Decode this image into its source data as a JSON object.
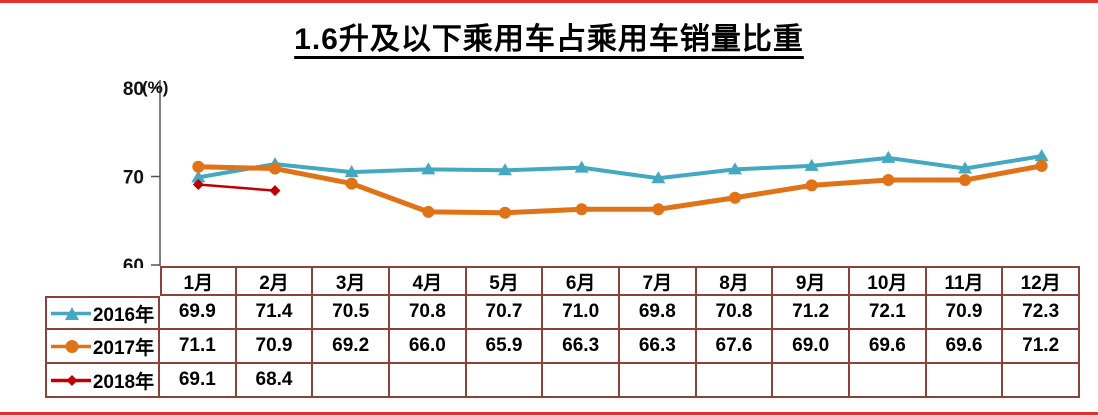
{
  "page": {
    "title": "1.6升及以下乘用车占乘用车销量比重"
  },
  "colors": {
    "series_2016": "#44a8c0",
    "series_2017": "#e07217",
    "series_2018": "#c00000",
    "table_border": "#8a423c",
    "frame_line": "#e03228"
  },
  "chart_data": {
    "type": "line",
    "title": "1.6升及以下乘用车占乘用车销量比重",
    "unit_label": "(%)",
    "ylim": [
      60,
      80
    ],
    "y_ticks": [
      80,
      70,
      60
    ],
    "grid": false,
    "legend_position": "table-left",
    "categories": [
      "1月",
      "2月",
      "3月",
      "4月",
      "5月",
      "6月",
      "7月",
      "8月",
      "9月",
      "10月",
      "11月",
      "12月"
    ],
    "series": [
      {
        "name": "2016年",
        "color": "#44a8c0",
        "marker": "triangle",
        "values": [
          69.9,
          71.4,
          70.5,
          70.8,
          70.7,
          71.0,
          69.8,
          70.8,
          71.2,
          72.1,
          70.9,
          72.3
        ]
      },
      {
        "name": "2017年",
        "color": "#e07217",
        "marker": "circle",
        "values": [
          71.1,
          70.9,
          69.2,
          66.0,
          65.9,
          66.3,
          66.3,
          67.6,
          69.0,
          69.6,
          69.6,
          71.2
        ]
      },
      {
        "name": "2018年",
        "color": "#c00000",
        "marker": "diamond",
        "values": [
          69.1,
          68.4
        ]
      }
    ]
  }
}
